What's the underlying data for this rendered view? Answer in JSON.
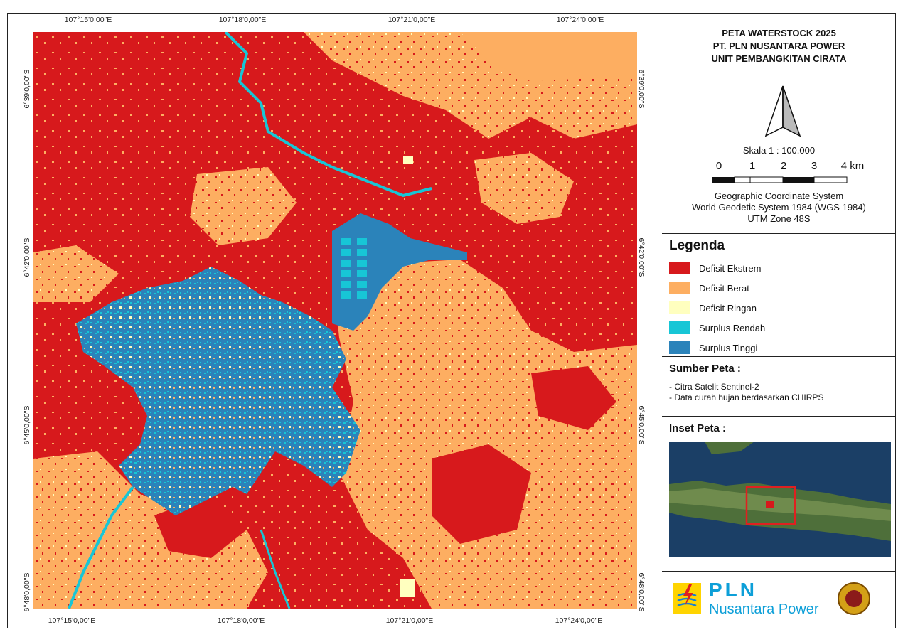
{
  "title": {
    "line1": "PETA WATERSTOCK 2025",
    "line2": "PT. PLN NUSANTARA POWER",
    "line3": "UNIT PEMBANGKITAN CIRATA"
  },
  "north_arrow": "north-arrow-icon",
  "scale": {
    "label": "Skala 1 : 100.000",
    "ticks": [
      "0",
      "1",
      "2",
      "3",
      "4 km"
    ]
  },
  "crs": {
    "line1": "Geographic Coordinate System",
    "line2": "World Geodetic System 1984 (WGS 1984)",
    "line3": "UTM Zone 48S"
  },
  "legend": {
    "title": "Legenda",
    "items": [
      {
        "label": "Defisit Ekstrem",
        "color": "#d7191c"
      },
      {
        "label": "Defisit Berat",
        "color": "#fdae61"
      },
      {
        "label": "Defisit Ringan",
        "color": "#ffffbf"
      },
      {
        "label": "Surplus Rendah",
        "color": "#17c6d6"
      },
      {
        "label": "Surplus Tinggi",
        "color": "#2b83ba"
      }
    ]
  },
  "source": {
    "title": "Sumber Peta :",
    "items": [
      "- Citra Satelit Sentinel-2",
      "- Data curah hujan berdasarkan CHIRPS"
    ]
  },
  "inset": {
    "title": "Inset Peta :"
  },
  "logo": {
    "brand": "PLN",
    "subtitle": "Nusantara Power"
  },
  "grid": {
    "lon": [
      "107°15'0,00\"E",
      "107°18'0,00\"E",
      "107°21'0,00\"E",
      "107°24'0,00\"E"
    ],
    "lat": [
      "6°39'0,00\"S",
      "6°42'0,00\"S",
      "6°45'0,00\"S",
      "6°48'0,00\"S"
    ],
    "lon_bottom": [
      "107°15'0,00\"E",
      "107°18'0,00\"E",
      "107°21'0,00\"E",
      "107°24'0,00\"E"
    ]
  }
}
